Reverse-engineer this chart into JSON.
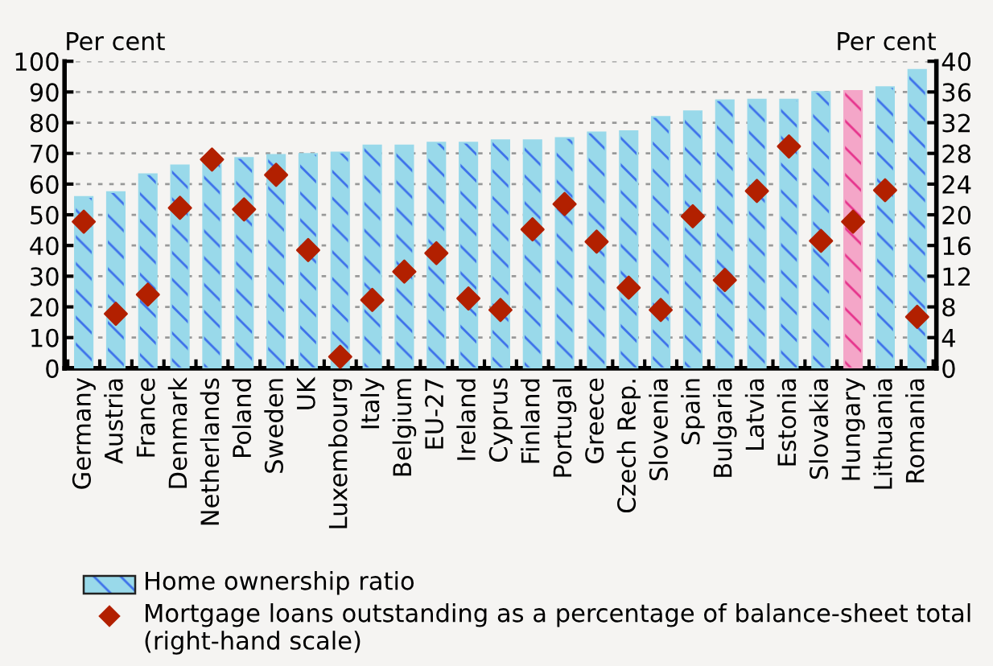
{
  "chart_data": {
    "type": "bar",
    "categories": [
      "Germany",
      "Austria",
      "France",
      "Denmark",
      "Netherlands",
      "Poland",
      "Sweden",
      "UK",
      "Luxembourg",
      "Italy",
      "Belgium",
      "EU-27",
      "Ireland",
      "Cyprus",
      "Finland",
      "Portugal",
      "Greece",
      "Czech Rep.",
      "Slovenia",
      "Spain",
      "Bulgaria",
      "Latvia",
      "Estonia",
      "Slovakia",
      "Hungary",
      "Lithuania",
      "Romania"
    ],
    "ylabel": "Per cent",
    "y2label": "Per cent",
    "ylim": [
      0,
      100
    ],
    "yticks": [
      0,
      10,
      20,
      30,
      40,
      50,
      60,
      70,
      80,
      90,
      100
    ],
    "y2lim": [
      0,
      40
    ],
    "y2ticks": [
      0,
      4,
      8,
      12,
      16,
      20,
      24,
      28,
      32,
      36,
      40
    ],
    "grid": "y",
    "legend": "bottom",
    "series": [
      {
        "name": "Home ownership ratio",
        "color": "#99d9ea",
        "colors": [
          "#99d9ea",
          "#99d9ea",
          "#99d9ea",
          "#99d9ea",
          "#99d9ea",
          "#99d9ea",
          "#99d9ea",
          "#99d9ea",
          "#99d9ea",
          "#99d9ea",
          "#99d9ea",
          "#99d9ea",
          "#99d9ea",
          "#99d9ea",
          "#99d9ea",
          "#99d9ea",
          "#99d9ea",
          "#99d9ea",
          "#99d9ea",
          "#99d9ea",
          "#99d9ea",
          "#99d9ea",
          "#99d9ea",
          "#99d9ea",
          "#f4a6c8",
          "#99d9ea",
          "#99d9ea"
        ],
        "values": [
          55.8,
          57.4,
          63.2,
          66.1,
          68.2,
          68.5,
          69.5,
          69.8,
          70.3,
          72.6,
          72.6,
          73.5,
          73.5,
          74.3,
          74.3,
          75.0,
          76.8,
          77.2,
          81.9,
          83.7,
          87.3,
          87.5,
          87.5,
          90.0,
          90.3,
          91.6,
          97.2
        ]
      },
      {
        "name": "Mortgage loans outstanding as a percentage of balance-sheet total (right-hand scale)",
        "type": "scatter",
        "axis": "y2",
        "color": "#b22000",
        "marker": "diamond",
        "values": [
          19.1,
          7.1,
          9.6,
          20.9,
          27.2,
          20.7,
          25.2,
          15.4,
          1.5,
          8.9,
          12.6,
          15.0,
          9.1,
          7.6,
          18.1,
          21.4,
          16.5,
          10.5,
          7.6,
          19.8,
          11.5,
          23.1,
          28.9,
          16.6,
          19.1,
          23.2,
          6.7
        ]
      }
    ]
  }
}
